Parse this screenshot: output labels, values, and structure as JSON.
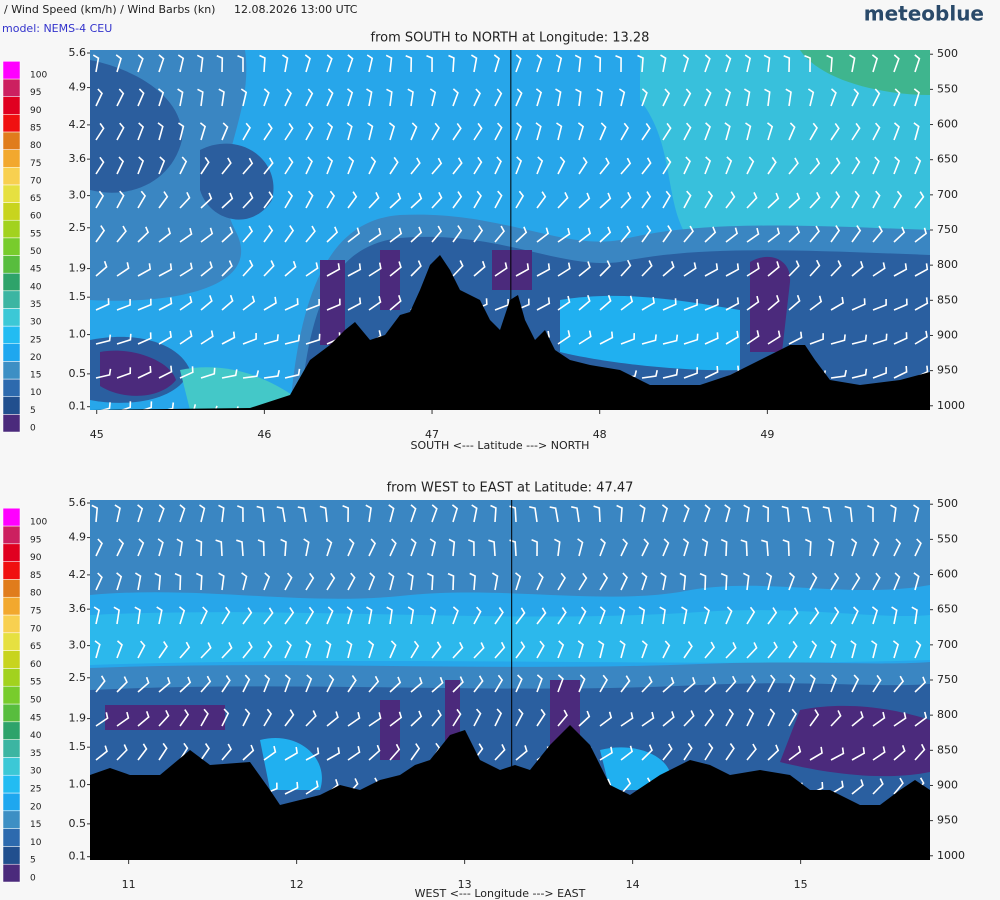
{
  "header": {
    "title": "/ Wind Speed (km/h) / Wind Barbs (kn)",
    "time": "12.08.2026  13:00 UTC",
    "brand": "meteoblue",
    "model": "model: NEMS-4 CEU"
  },
  "chart_data": [
    {
      "type": "cross-section",
      "title": "from SOUTH to NORTH at Longitude:  13.28",
      "x_label": "SOUTH <---   Latitude   ---> NORTH",
      "xlim": [
        44.96,
        49.97
      ],
      "xticks": [
        45,
        46,
        47,
        48,
        49
      ],
      "crosshair": 47.47,
      "ylim": [
        0.06,
        5.66
      ],
      "yticks": [
        5.6,
        4.9,
        4.2,
        3.6,
        {
          "value": 3,
          "label": "3.0"
        },
        2.5,
        1.9,
        1.5,
        {
          "value": 1,
          "label": "1.0"
        },
        0.5,
        0.1
      ],
      "y2lim": [
        1006,
        494
      ],
      "y2ticks": [
        500,
        550,
        600,
        650,
        700,
        750,
        800,
        850,
        900,
        950,
        1000
      ],
      "colorbar": {
        "levels": [
          0,
          5,
          10,
          15,
          20,
          25,
          30,
          35,
          40,
          45,
          50,
          55,
          60,
          65,
          70,
          75,
          80,
          85,
          90,
          95,
          100
        ],
        "colors": [
          "#4b2a7c",
          "#214f8e",
          "#2d6aae",
          "#3d8fc4",
          "#1ea7ef",
          "#22bcf2",
          "#3cc8d6",
          "#3cb5a2",
          "#2ea36a",
          "#58bd3e",
          "#78cc2c",
          "#a2d21e",
          "#c8d41e",
          "#e6e040",
          "#f8d050",
          "#f2a82e",
          "#e07c1c",
          "#f01010",
          "#e00020",
          "#cc2060",
          "#ff00ff"
        ]
      }
    },
    {
      "type": "cross-section",
      "title": "from WEST to EAST at Latitude:  47.47",
      "x_label": "WEST <---   Longitude   ---> EAST",
      "xlim": [
        10.77,
        15.77
      ],
      "xticks": [
        11,
        12,
        13,
        14,
        15
      ],
      "crosshair": 13.28,
      "ylim": [
        0.06,
        5.66
      ],
      "yticks": [
        5.6,
        4.9,
        4.2,
        3.6,
        {
          "value": 3,
          "label": "3.0"
        },
        2.5,
        1.9,
        1.5,
        {
          "value": 1,
          "label": "1.0"
        },
        0.5,
        0.1
      ],
      "y2lim": [
        1006,
        494
      ],
      "y2ticks": [
        500,
        550,
        600,
        650,
        700,
        750,
        800,
        850,
        900,
        950,
        1000
      ],
      "colorbar": {
        "levels": [
          0,
          5,
          10,
          15,
          20,
          25,
          30,
          35,
          40,
          45,
          50,
          55,
          60,
          65,
          70,
          75,
          80,
          85,
          90,
          95,
          100
        ],
        "colors": [
          "#4b2a7c",
          "#214f8e",
          "#2d6aae",
          "#3d8fc4",
          "#1ea7ef",
          "#22bcf2",
          "#3cc8d6",
          "#3cb5a2",
          "#2ea36a",
          "#58bd3e",
          "#78cc2c",
          "#a2d21e",
          "#c8d41e",
          "#e6e040",
          "#f8d050",
          "#f2a82e",
          "#e07c1c",
          "#f01010",
          "#e00020",
          "#cc2060",
          "#ff00ff"
        ]
      }
    }
  ]
}
